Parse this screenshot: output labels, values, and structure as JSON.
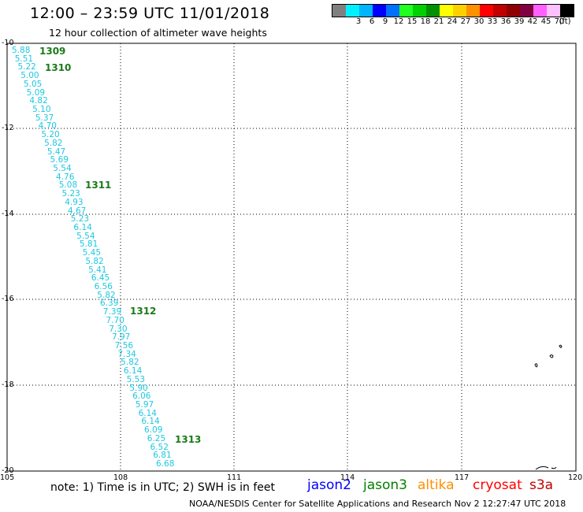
{
  "header": {
    "title": "12:00 – 23:59 UTC 11/01/2018",
    "subtitle": "12 hour collection of altimeter wave heights"
  },
  "legend": {
    "unit_label": "(ft)",
    "swatches": [
      {
        "color": "#808080",
        "label": ""
      },
      {
        "color": "#00f0ff",
        "label": "3"
      },
      {
        "color": "#00b4ff",
        "label": "6"
      },
      {
        "color": "#0000ff",
        "label": "9"
      },
      {
        "color": "#0070ff",
        "label": "12"
      },
      {
        "color": "#20ff20",
        "label": "15"
      },
      {
        "color": "#00d000",
        "label": "18"
      },
      {
        "color": "#009000",
        "label": "21"
      },
      {
        "color": "#ffff00",
        "label": "24"
      },
      {
        "color": "#ffd000",
        "label": "27"
      },
      {
        "color": "#ff9000",
        "label": "30"
      },
      {
        "color": "#ff0000",
        "label": "33"
      },
      {
        "color": "#c00000",
        "label": "36"
      },
      {
        "color": "#900000",
        "label": "39"
      },
      {
        "color": "#800040",
        "label": "42"
      },
      {
        "color": "#ff60ff",
        "label": "45"
      },
      {
        "color": "#ffc0ff",
        "label": "70"
      },
      {
        "color": "#000000",
        "label": ""
      }
    ]
  },
  "axes": {
    "x_ticks": [
      "105",
      "108",
      "111",
      "114",
      "117",
      "120"
    ],
    "y_ticks": [
      "-10",
      "-12",
      "-14",
      "-16",
      "-18",
      "-20"
    ]
  },
  "wave_heights": [
    "5.88",
    "5.51",
    "5.22",
    "5.00",
    "5.05",
    "5.09",
    "4.82",
    "5.10",
    "5.37",
    "4.70",
    "5.20",
    "5.82",
    "5.47",
    "5.69",
    "5.54",
    "4.76",
    "5.08",
    "5.23",
    "4.93",
    "4.67",
    "5.23",
    "6.14",
    "5.54",
    "5.81",
    "5.45",
    "5.82",
    "5.41",
    "6.45",
    "6.56",
    "5.82",
    "6.39",
    "7.39",
    "7.70",
    "7.30",
    "7.97",
    "7.56",
    "7.34",
    "5.82",
    "6.14",
    "5.53",
    "5.90",
    "6.06",
    "5.97",
    "6.14",
    "6.14",
    "6.09",
    "6.25",
    "6.52",
    "6.81",
    "6.68"
  ],
  "pass_labels": [
    "1309",
    "1310",
    "1311",
    "1312",
    "1313"
  ],
  "note": "note: 1) Time is in UTC; 2) SWH is in feet",
  "satellites": [
    {
      "name": "jason2",
      "color": "#0000ff"
    },
    {
      "name": "jason3",
      "color": "#008000"
    },
    {
      "name": "altika",
      "color": "#ff9000"
    },
    {
      "name": "cryosat",
      "color": "#ff0000"
    },
    {
      "name": "s3a",
      "color": "#c00000"
    }
  ],
  "footer": "NOAA/NESDIS Center for Satellite Applications and Research   Nov  2 12:27:47 UTC 2018"
}
